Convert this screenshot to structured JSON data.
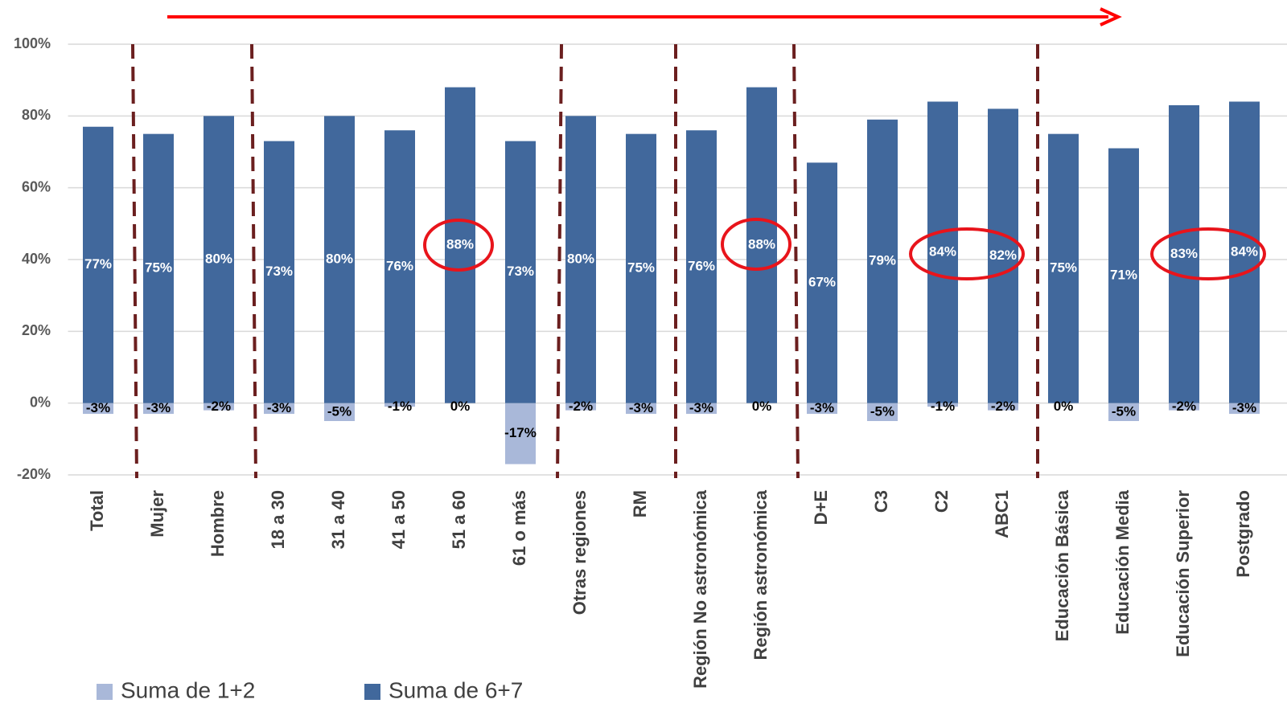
{
  "chart_data": {
    "type": "bar",
    "categories": [
      "Total",
      "Mujer",
      "Hombre",
      "18 a 30",
      "31 a 40",
      "41 a 50",
      "51 a 60",
      "61 o más",
      "Otras regiones",
      "RM",
      "Región No astronómica",
      "Región astronómica",
      "D+E",
      "C3",
      "C2",
      "ABC1",
      "Educación Básica",
      "Educación Media",
      "Educación Superior",
      "Postgrado"
    ],
    "series": [
      {
        "name": "Suma de 1+2",
        "color": "#a9b8d9",
        "values": [
          -3,
          -3,
          -2,
          -3,
          -5,
          -1,
          0,
          -17,
          -2,
          -3,
          -3,
          0,
          -3,
          -5,
          -1,
          -2,
          0,
          -5,
          -2,
          -3
        ],
        "value_labels": [
          "-3%",
          "-3%",
          "-2%",
          "-3%",
          "-5%",
          "-1%",
          "0%",
          "-17%",
          "-2%",
          "-3%",
          "-3%",
          "0%",
          "-3%",
          "-5%",
          "-1%",
          "-2%",
          "0%",
          "-5%",
          "-2%",
          "-3%"
        ]
      },
      {
        "name": "Suma de 6+7",
        "color": "#41689c",
        "values": [
          77,
          75,
          80,
          73,
          80,
          76,
          88,
          73,
          80,
          75,
          76,
          88,
          67,
          79,
          84,
          82,
          75,
          71,
          83,
          84
        ],
        "value_labels": [
          "77%",
          "75%",
          "80%",
          "73%",
          "80%",
          "76%",
          "88%",
          "73%",
          "80%",
          "75%",
          "76%",
          "88%",
          "67%",
          "79%",
          "84%",
          "82%",
          "75%",
          "71%",
          "83%",
          "84%"
        ]
      }
    ],
    "ylim": [
      -20,
      100
    ],
    "yticks": [
      {
        "value": -20,
        "label": "-20%"
      },
      {
        "value": 0,
        "label": "0%"
      },
      {
        "value": 20,
        "label": "20%"
      },
      {
        "value": 40,
        "label": "40%"
      },
      {
        "value": 60,
        "label": "60%"
      },
      {
        "value": 80,
        "label": "80%"
      },
      {
        "value": 100,
        "label": "100%"
      }
    ],
    "grid": true,
    "legend": "bottom"
  }
}
